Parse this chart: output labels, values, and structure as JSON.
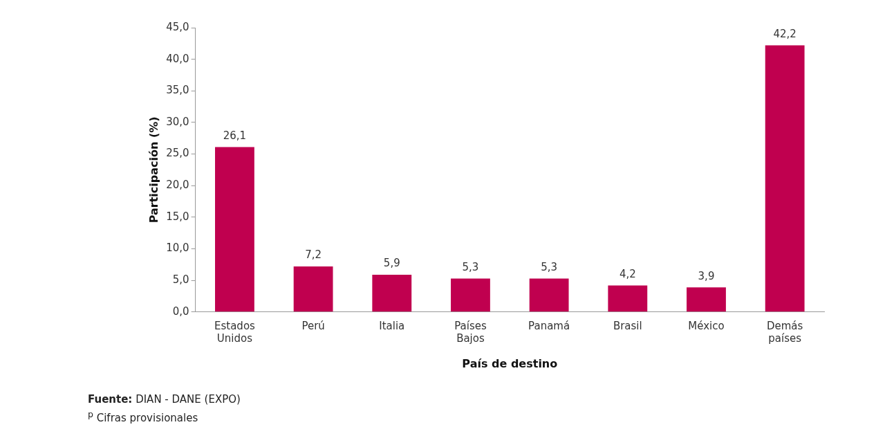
{
  "chart_data": {
    "type": "bar",
    "xlabel": "País de destino",
    "ylabel": "Participación (%)",
    "categories": [
      "Estados Unidos",
      "Perú",
      "Italia",
      "Países Bajos",
      "Panamá",
      "Brasil",
      "México",
      "Demás países"
    ],
    "values": [
      26.1,
      7.2,
      5.9,
      5.3,
      5.3,
      4.2,
      3.9,
      42.2
    ],
    "value_labels": [
      "26,1",
      "7,2",
      "5,9",
      "5,3",
      "5,3",
      "4,2",
      "3,9",
      "42,2"
    ],
    "color": "#c0004f",
    "ylim": [
      0,
      45
    ],
    "yticks": [
      {
        "value": 0,
        "label": "0,0"
      },
      {
        "value": 5,
        "label": "5,0"
      },
      {
        "value": 10,
        "label": "10,0"
      },
      {
        "value": 15,
        "label": "15,0"
      },
      {
        "value": 20,
        "label": "20,0"
      },
      {
        "value": 25,
        "label": "25,0"
      },
      {
        "value": 30,
        "label": "30,0"
      },
      {
        "value": 35,
        "label": "35,0"
      },
      {
        "value": 40,
        "label": "40,0"
      },
      {
        "value": 45,
        "label": "45,0"
      }
    ],
    "grid": false,
    "legend": false,
    "annotations": [
      "Fuente: DIAN - DANE (EXPO)",
      "$^{p}$ Cifras provisionales"
    ]
  }
}
